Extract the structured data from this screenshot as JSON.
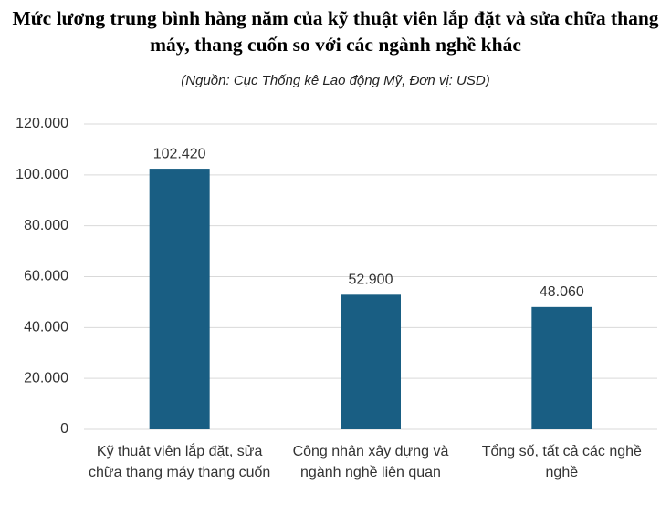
{
  "chart_data": {
    "type": "bar",
    "title": "Mức lương trung bình hàng năm của kỹ thuật viên lắp đặt và sửa chữa thang máy, thang cuốn so với các ngành nghề khác",
    "subtitle": "(Nguồn: Cục Thống kê Lao động Mỹ, Đơn vị: USD)",
    "categories": [
      "Kỹ thuật viên lắp đặt, sửa chữa thang máy thang cuốn",
      "Công nhân xây dựng và ngành nghề liên quan",
      "Tổng số, tất cả các nghề nghề"
    ],
    "values": [
      102420,
      52900,
      48060
    ],
    "value_labels": [
      "102.420",
      "52.900",
      "48.060"
    ],
    "color": "#195e83",
    "ylim": [
      0,
      120000
    ],
    "yticks": [
      0,
      {
        "value": 20000,
        "label": "20.000"
      },
      {
        "value": 40000,
        "label": "40.000"
      },
      {
        "value": 60000,
        "label": "60.000"
      },
      {
        "value": 80000,
        "label": "80.000"
      },
      {
        "value": 100000,
        "label": "100.000"
      },
      {
        "value": 120000,
        "label": "120.000"
      }
    ],
    "grid": true
  }
}
